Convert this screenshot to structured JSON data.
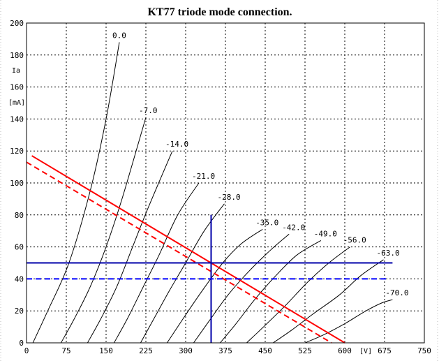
{
  "chart_data": {
    "type": "line",
    "title": "KT77 triode mode connection.",
    "ylabel_name": "Ia",
    "ylabel_unit": "[mA]",
    "xlabel_unit": "[V]",
    "xlim": [
      0,
      750
    ],
    "ylim": [
      0,
      200
    ],
    "x_ticks": [
      "0",
      "75",
      "150",
      "225",
      "300",
      "375",
      "450",
      "525",
      "600",
      "675",
      "750"
    ],
    "y_ticks": [
      "0",
      "20",
      "40",
      "60",
      "80",
      "100",
      "120",
      "140",
      "160",
      "180",
      "200"
    ],
    "grid": true,
    "series": [
      {
        "name": "0.0",
        "x": [
          12,
          40,
          80,
          120,
          150,
          175
        ],
        "y": [
          0,
          20,
          50,
          95,
          140,
          188
        ]
      },
      {
        "name": "-7.0",
        "x": [
          65,
          90,
          120,
          150,
          180,
          225
        ],
        "y": [
          0,
          15,
          35,
          60,
          90,
          141
        ]
      },
      {
        "name": "-14.0",
        "x": [
          115,
          140,
          170,
          200,
          230,
          275
        ],
        "y": [
          0,
          15,
          35,
          60,
          85,
          120
        ]
      },
      {
        "name": "-21.0",
        "x": [
          165,
          190,
          220,
          250,
          285,
          325
        ],
        "y": [
          0,
          15,
          35,
          55,
          80,
          100
        ]
      },
      {
        "name": "-28.0",
        "x": [
          215,
          240,
          270,
          300,
          335,
          373
        ],
        "y": [
          0,
          15,
          33,
          50,
          70,
          87
        ]
      },
      {
        "name": "-35.0",
        "x": [
          265,
          295,
          330,
          370,
          405,
          445
        ],
        "y": [
          0,
          15,
          32,
          50,
          62,
          71
        ]
      },
      {
        "name": "-42.0",
        "x": [
          315,
          345,
          380,
          420,
          460,
          495
        ],
        "y": [
          0,
          14,
          30,
          45,
          58,
          68
        ]
      },
      {
        "name": "-49.0",
        "x": [
          365,
          395,
          430,
          470,
          510,
          555
        ],
        "y": [
          0,
          12,
          27,
          42,
          55,
          64
        ]
      },
      {
        "name": "-56.0",
        "x": [
          415,
          450,
          490,
          530,
          570,
          610
        ],
        "y": [
          0,
          11,
          24,
          38,
          50,
          60
        ]
      },
      {
        "name": "-63.0",
        "x": [
          465,
          500,
          540,
          590,
          630,
          673
        ],
        "y": [
          0,
          8,
          18,
          30,
          42,
          52
        ]
      },
      {
        "name": "-70.0",
        "x": [
          525,
          560,
          600,
          640,
          670,
          690
        ],
        "y": [
          0,
          5,
          12,
          20,
          25,
          27
        ]
      }
    ],
    "overlays": [
      {
        "kind": "load-line-solid",
        "color": "#ff0000",
        "x": [
          10,
          600
        ],
        "y": [
          117,
          0
        ]
      },
      {
        "kind": "load-line-dashed",
        "color": "#ff0000",
        "x": [
          0,
          575
        ],
        "y": [
          113,
          0
        ]
      },
      {
        "kind": "bias-vertical",
        "color": "#0000aa",
        "x": [
          348,
          348
        ],
        "y": [
          0,
          80
        ]
      },
      {
        "kind": "bias-horizontal",
        "color": "#0000aa",
        "x": [
          0,
          690
        ],
        "y": [
          50,
          50
        ]
      },
      {
        "kind": "bias-horizontal-dashed",
        "color": "#0000ff",
        "x": [
          0,
          680
        ],
        "y": [
          40,
          40
        ]
      }
    ]
  }
}
